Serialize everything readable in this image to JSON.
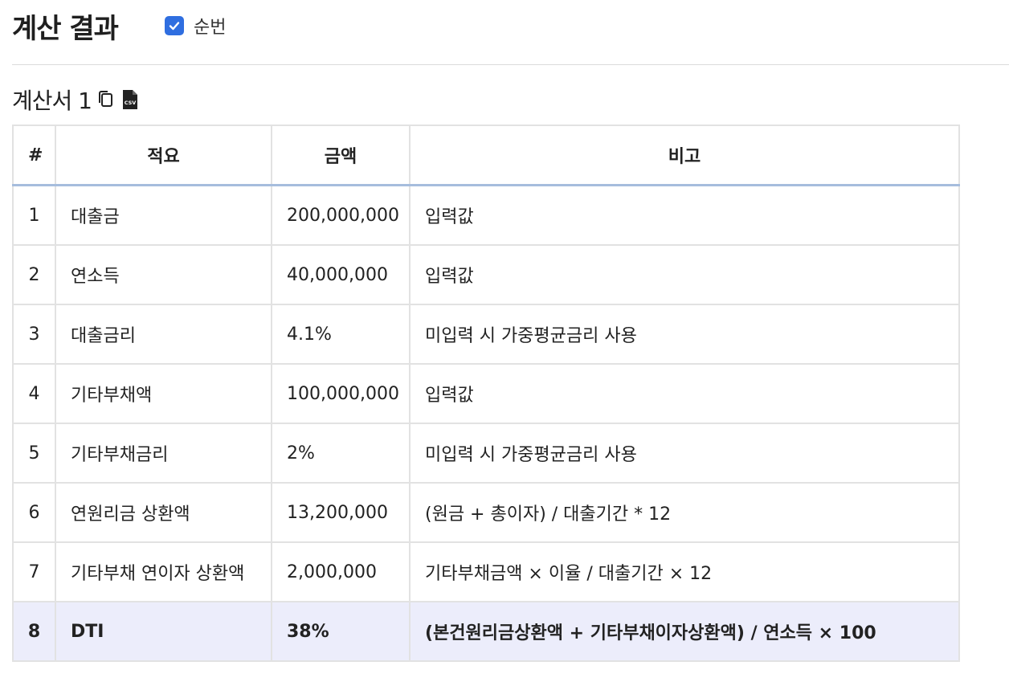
{
  "header": {
    "title": "계산 결과",
    "toggle_label": "순번",
    "toggle_checked": true
  },
  "section": {
    "title": "계산서 1",
    "copy_icon": "copy-icon",
    "csv_icon": "csv-file-icon"
  },
  "table": {
    "columns": [
      "#",
      "적요",
      "금액",
      "비고"
    ],
    "rows": [
      {
        "num": "1",
        "item": "대출금",
        "amount": "200,000,000",
        "note": "입력값"
      },
      {
        "num": "2",
        "item": "연소득",
        "amount": "40,000,000",
        "note": "입력값"
      },
      {
        "num": "3",
        "item": "대출금리",
        "amount": "4.1%",
        "note": "미입력 시 가중평균금리 사용"
      },
      {
        "num": "4",
        "item": "기타부채액",
        "amount": "100,000,000",
        "note": "입력값"
      },
      {
        "num": "5",
        "item": "기타부채금리",
        "amount": "2%",
        "note": "미입력 시 가중평균금리 사용"
      },
      {
        "num": "6",
        "item": "연원리금 상환액",
        "amount": "13,200,000",
        "note": "(원금 + 총이자) / 대출기간 * 12"
      },
      {
        "num": "7",
        "item": "기타부채 연이자 상환액",
        "amount": "2,000,000",
        "note": "기타부채금액 × 이율 / 대출기간 × 12"
      },
      {
        "num": "8",
        "item": "DTI",
        "amount": "38%",
        "note": "(본건원리금상환액 + 기타부채이자상환액) / 연소득 × 100"
      }
    ]
  },
  "colors": {
    "accent": "#2f6ee0",
    "header_rule": "#a6bddd",
    "total_row_bg": "#ecedfb"
  }
}
